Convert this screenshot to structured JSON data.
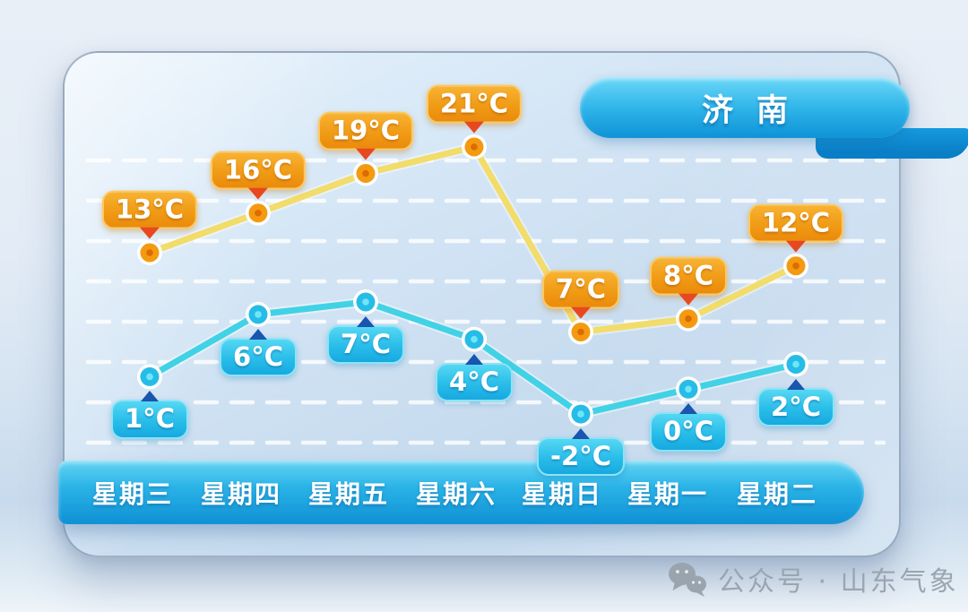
{
  "card": {
    "city": "济南"
  },
  "watermark": {
    "icon": "wechat-icon",
    "text": "公众号 · 山东气象"
  },
  "colors": {
    "high_line": "#f2dc6a",
    "high_point": "#f49a10",
    "high_point_dot": "#dd6a02",
    "high_label_bg": "#f09b15",
    "high_arrow": "#e8481d",
    "low_line": "#41d2e6",
    "low_point": "#27bce8",
    "low_point_dot": "#6fe6f8",
    "low_label_bg": "#2bbce7",
    "low_arrow": "#1a55ae",
    "day_bar": "#1f9fd9",
    "city_badge": "#1e9fdd",
    "gridline": "#ffffff"
  },
  "chart_data": {
    "type": "line",
    "title": "济南",
    "categories": [
      "星期三",
      "星期四",
      "星期五",
      "星期六",
      "星期日",
      "星期一",
      "星期二"
    ],
    "unit": "°C",
    "series": [
      {
        "name": "high",
        "values": [
          13,
          16,
          19,
          21,
          7,
          8,
          12
        ]
      },
      {
        "name": "low",
        "values": [
          1,
          6,
          7,
          4,
          -2,
          0,
          2
        ]
      }
    ],
    "grid": true,
    "legend": "none"
  }
}
